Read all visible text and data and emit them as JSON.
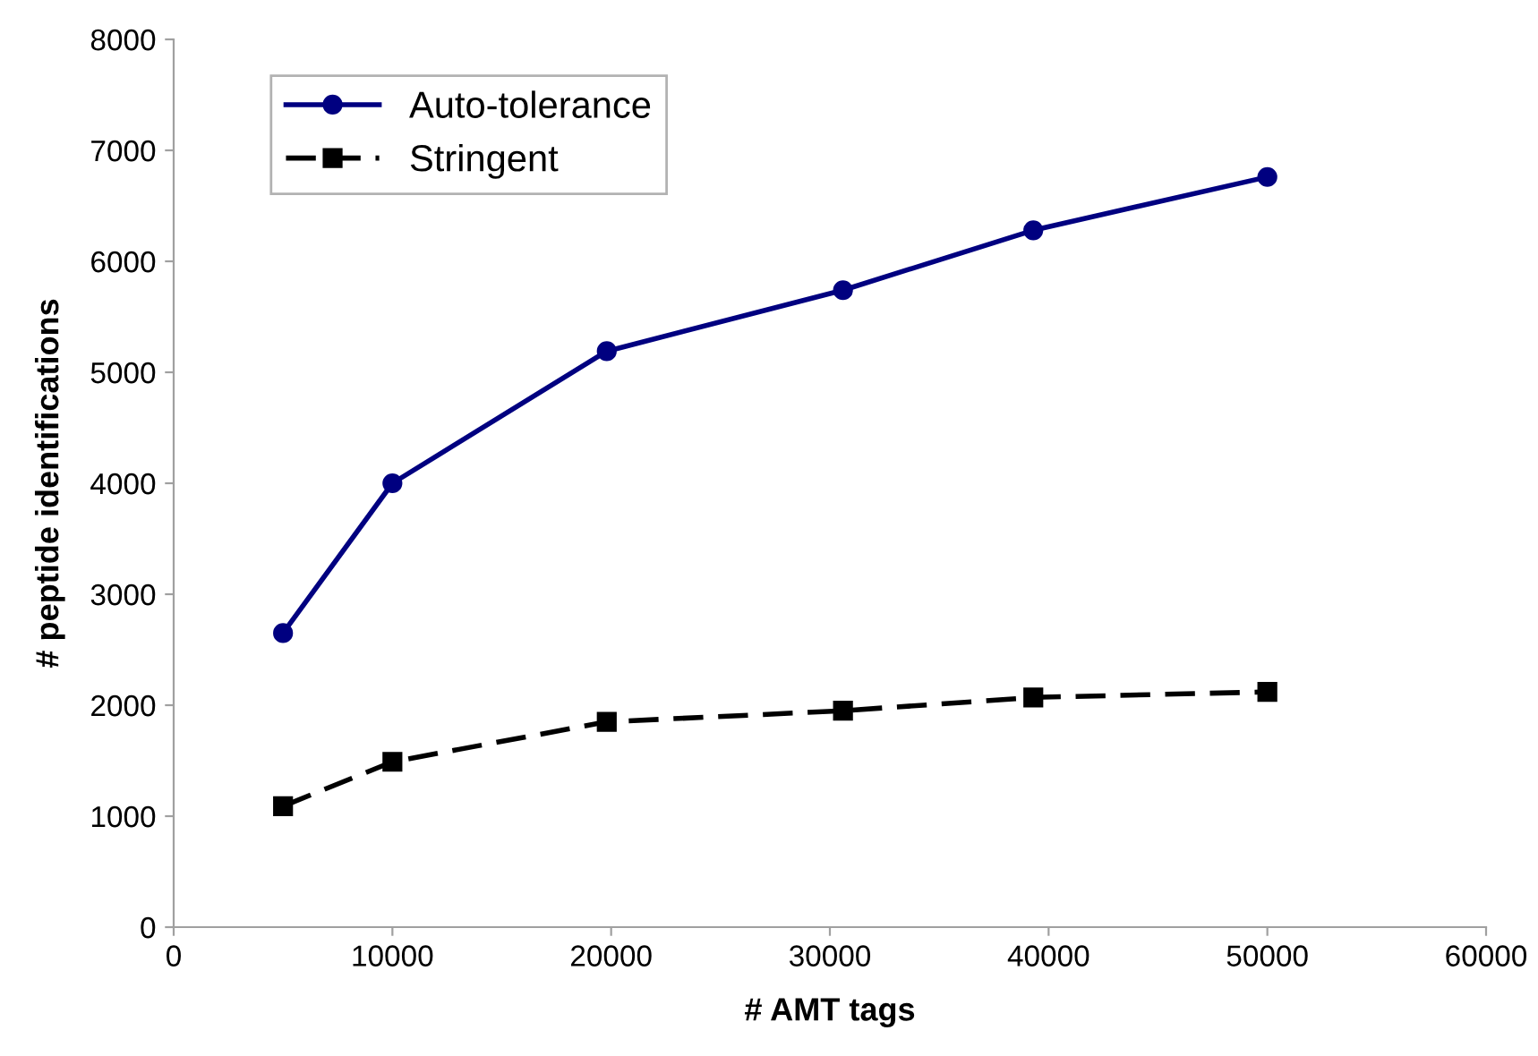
{
  "chart_data": {
    "type": "line",
    "xlabel": "# AMT tags",
    "ylabel": "# peptide identifications",
    "x": [
      5000,
      10000,
      19800,
      30600,
      39300,
      50000
    ],
    "series": [
      {
        "name": "Auto-tolerance",
        "color": "#000080",
        "values": [
          2650,
          4000,
          5190,
          5740,
          6280,
          6760
        ],
        "marker": "circle",
        "line_style": "solid"
      },
      {
        "name": "Stringent",
        "color": "#000000",
        "values": [
          1090,
          1490,
          1850,
          1950,
          2070,
          2120
        ],
        "marker": "square",
        "line_style": "dashed"
      }
    ],
    "xlim": [
      0,
      60000
    ],
    "xticks": [
      0,
      10000,
      20000,
      30000,
      40000,
      50000,
      60000
    ],
    "ylim": [
      0,
      8000
    ],
    "yticks": [
      0,
      1000,
      2000,
      3000,
      4000,
      5000,
      6000,
      7000,
      8000
    ],
    "grid": false,
    "legend": "top left"
  }
}
